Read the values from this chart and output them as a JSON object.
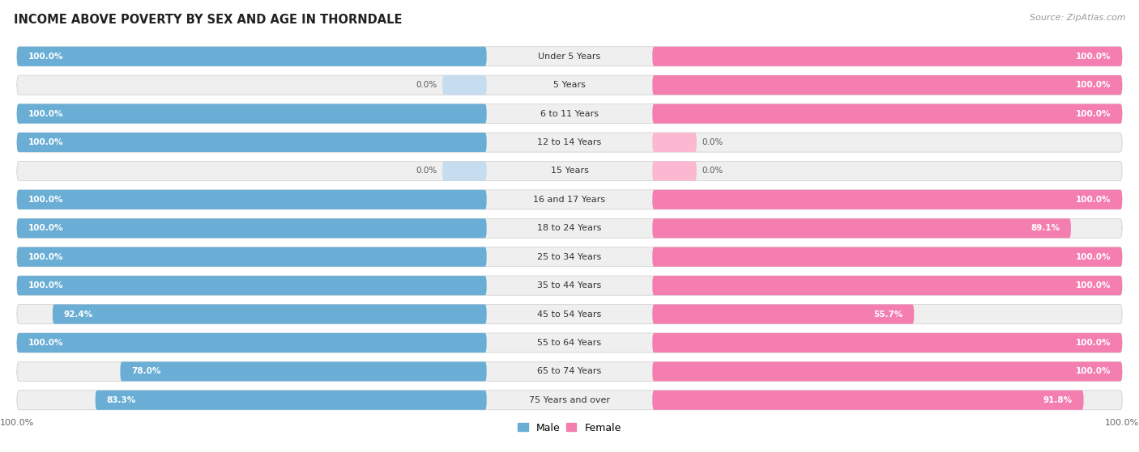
{
  "title": "INCOME ABOVE POVERTY BY SEX AND AGE IN THORNDALE",
  "source": "Source: ZipAtlas.com",
  "categories": [
    "Under 5 Years",
    "5 Years",
    "6 to 11 Years",
    "12 to 14 Years",
    "15 Years",
    "16 and 17 Years",
    "18 to 24 Years",
    "25 to 34 Years",
    "35 to 44 Years",
    "45 to 54 Years",
    "55 to 64 Years",
    "65 to 74 Years",
    "75 Years and over"
  ],
  "male": [
    100.0,
    0.0,
    100.0,
    100.0,
    0.0,
    100.0,
    100.0,
    100.0,
    100.0,
    92.4,
    100.0,
    78.0,
    83.3
  ],
  "female": [
    100.0,
    100.0,
    100.0,
    0.0,
    0.0,
    100.0,
    89.1,
    100.0,
    100.0,
    55.7,
    100.0,
    100.0,
    91.8
  ],
  "male_color": "#6aaed6",
  "female_color": "#f47eb0",
  "male_color_light": "#c6dcef",
  "female_color_light": "#fbb8d0",
  "row_bg_color": "#efefef",
  "background_color": "#ffffff",
  "title_fontsize": 10.5,
  "label_fontsize": 8.0,
  "value_fontsize": 7.5,
  "legend_fontsize": 9,
  "source_fontsize": 8
}
